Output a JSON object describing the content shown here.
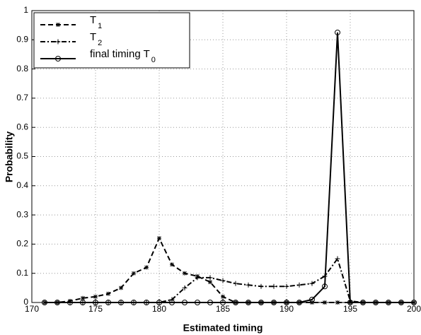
{
  "chart_data": {
    "type": "line",
    "x_label": "Estimated timing",
    "y_label": "Probability",
    "x": [
      171,
      172,
      173,
      174,
      175,
      176,
      177,
      178,
      179,
      180,
      181,
      182,
      183,
      184,
      185,
      186,
      187,
      188,
      189,
      190,
      191,
      192,
      193,
      194,
      195,
      196,
      197,
      198,
      199,
      200
    ],
    "series": [
      {
        "name": "T1",
        "color": "#000000",
        "values": [
          0,
          0,
          0.005,
          0.015,
          0.02,
          0.03,
          0.05,
          0.1,
          0.12,
          0.22,
          0.13,
          0.1,
          0.09,
          0.07,
          0.02,
          0,
          0,
          0,
          0,
          0,
          0,
          0,
          0,
          0,
          0,
          0,
          0,
          0,
          0,
          0
        ]
      },
      {
        "name": "T2",
        "color": "#000000",
        "values": [
          0,
          0,
          0,
          0,
          0,
          0,
          0,
          0,
          0,
          0,
          0.01,
          0.05,
          0.085,
          0.085,
          0.075,
          0.065,
          0.06,
          0.055,
          0.055,
          0.055,
          0.06,
          0.065,
          0.09,
          0.15,
          0.005,
          0,
          0,
          0,
          0,
          0
        ]
      },
      {
        "name": "final timing T0",
        "color": "#000000",
        "values": [
          0,
          0,
          0,
          0,
          0,
          0,
          0,
          0,
          0,
          0,
          0,
          0,
          0,
          0,
          0,
          0,
          0,
          0,
          0,
          0,
          0,
          0.01,
          0.055,
          0.925,
          0,
          0,
          0,
          0,
          0,
          0
        ]
      }
    ],
    "xlim": [
      170,
      200
    ],
    "xticks": [
      170,
      175,
      180,
      185,
      190,
      195,
      200
    ],
    "ylim": [
      0,
      1
    ],
    "yticks": [
      0,
      0.1,
      0.2,
      0.3,
      0.4,
      0.5,
      0.6,
      0.7,
      0.8,
      0.9,
      1
    ],
    "grid": true,
    "legend": "upper left"
  }
}
